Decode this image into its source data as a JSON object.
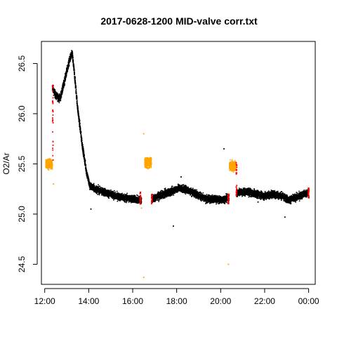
{
  "chart_data": {
    "type": "scatter",
    "title": "2017-0628-1200 MID-valve corr.txt",
    "xlabel": "",
    "ylabel": "O2/Ar",
    "xlim": [
      11.85,
      24.3
    ],
    "ylim": [
      24.3,
      26.72
    ],
    "xticks": [
      12,
      14,
      16,
      18,
      20,
      22,
      24
    ],
    "xtick_labels": [
      "12:00",
      "14:00",
      "16:00",
      "18:00",
      "20:00",
      "22:00",
      "00:00"
    ],
    "yticks": [
      24.5,
      25.0,
      25.5,
      26.0,
      26.5
    ],
    "ytick_labels": [
      "24.5",
      "25.0",
      "25.5",
      "26.0",
      "26.5"
    ],
    "grid": false,
    "legend": "none",
    "colors": {
      "main": "#000000",
      "valve": "#ffa500",
      "transition": "#ff0000"
    },
    "series": [
      {
        "color_key": "main",
        "x_unit": "hours",
        "trend": [
          [
            12.35,
            26.26
          ],
          [
            12.5,
            26.18
          ],
          [
            12.7,
            26.15
          ],
          [
            12.85,
            26.28
          ],
          [
            13.0,
            26.42
          ],
          [
            13.15,
            26.55
          ],
          [
            13.25,
            26.6
          ],
          [
            13.35,
            26.4
          ],
          [
            13.5,
            26.05
          ],
          [
            13.7,
            25.7
          ],
          [
            13.9,
            25.42
          ],
          [
            14.05,
            25.28
          ],
          [
            14.3,
            25.25
          ],
          [
            14.7,
            25.22
          ],
          [
            15.2,
            25.18
          ],
          [
            15.7,
            25.16
          ],
          [
            16.3,
            25.14
          ],
          [
            16.8,
            25.14
          ],
          [
            17.3,
            25.19
          ],
          [
            17.7,
            25.22
          ],
          [
            18.1,
            25.26
          ],
          [
            18.5,
            25.24
          ],
          [
            18.9,
            25.2
          ],
          [
            19.3,
            25.15
          ],
          [
            19.7,
            25.15
          ],
          [
            20.0,
            25.14
          ],
          [
            20.35,
            25.16
          ],
          [
            20.85,
            25.22
          ],
          [
            21.2,
            25.22
          ],
          [
            21.6,
            25.2
          ],
          [
            22.0,
            25.18
          ],
          [
            22.4,
            25.2
          ],
          [
            22.8,
            25.18
          ],
          [
            23.1,
            25.14
          ],
          [
            23.5,
            25.17
          ],
          [
            23.8,
            25.2
          ],
          [
            24.0,
            25.21
          ]
        ],
        "spread": 0.035,
        "outliers": [
          [
            17.85,
            24.88
          ],
          [
            20.15,
            25.65
          ],
          [
            22.92,
            24.97
          ],
          [
            15.65,
            25.12
          ],
          [
            18.2,
            25.37
          ],
          [
            21.7,
            25.12
          ],
          [
            14.1,
            25.05
          ]
        ]
      },
      {
        "color_key": "valve",
        "x_unit": "hours",
        "segments": [
          {
            "from": 12.05,
            "to": 12.35,
            "y": 25.5
          },
          {
            "from": 16.55,
            "to": 16.85,
            "y": 25.51
          },
          {
            "from": 20.4,
            "to": 20.7,
            "y": 25.48
          }
        ],
        "spread": 0.045,
        "outliers": [
          [
            16.5,
            25.8
          ],
          [
            16.5,
            24.37
          ],
          [
            16.4,
            25.06
          ],
          [
            20.35,
            24.5
          ],
          [
            12.4,
            25.3
          ],
          [
            20.4,
            25.2
          ]
        ]
      },
      {
        "color_key": "transition",
        "x_unit": "hours",
        "markers": [
          {
            "x": 12.37,
            "y_from": 25.5,
            "y_to": 26.3
          },
          {
            "x": 16.35,
            "y_from": 25.1,
            "y_to": 25.22
          },
          {
            "x": 16.87,
            "y_from": 25.1,
            "y_to": 25.2
          },
          {
            "x": 20.35,
            "y_from": 25.1,
            "y_to": 25.2
          },
          {
            "x": 20.72,
            "y_from": 25.18,
            "y_to": 25.55
          },
          {
            "x": 24.0,
            "y_from": 25.16,
            "y_to": 25.26
          }
        ]
      }
    ]
  }
}
